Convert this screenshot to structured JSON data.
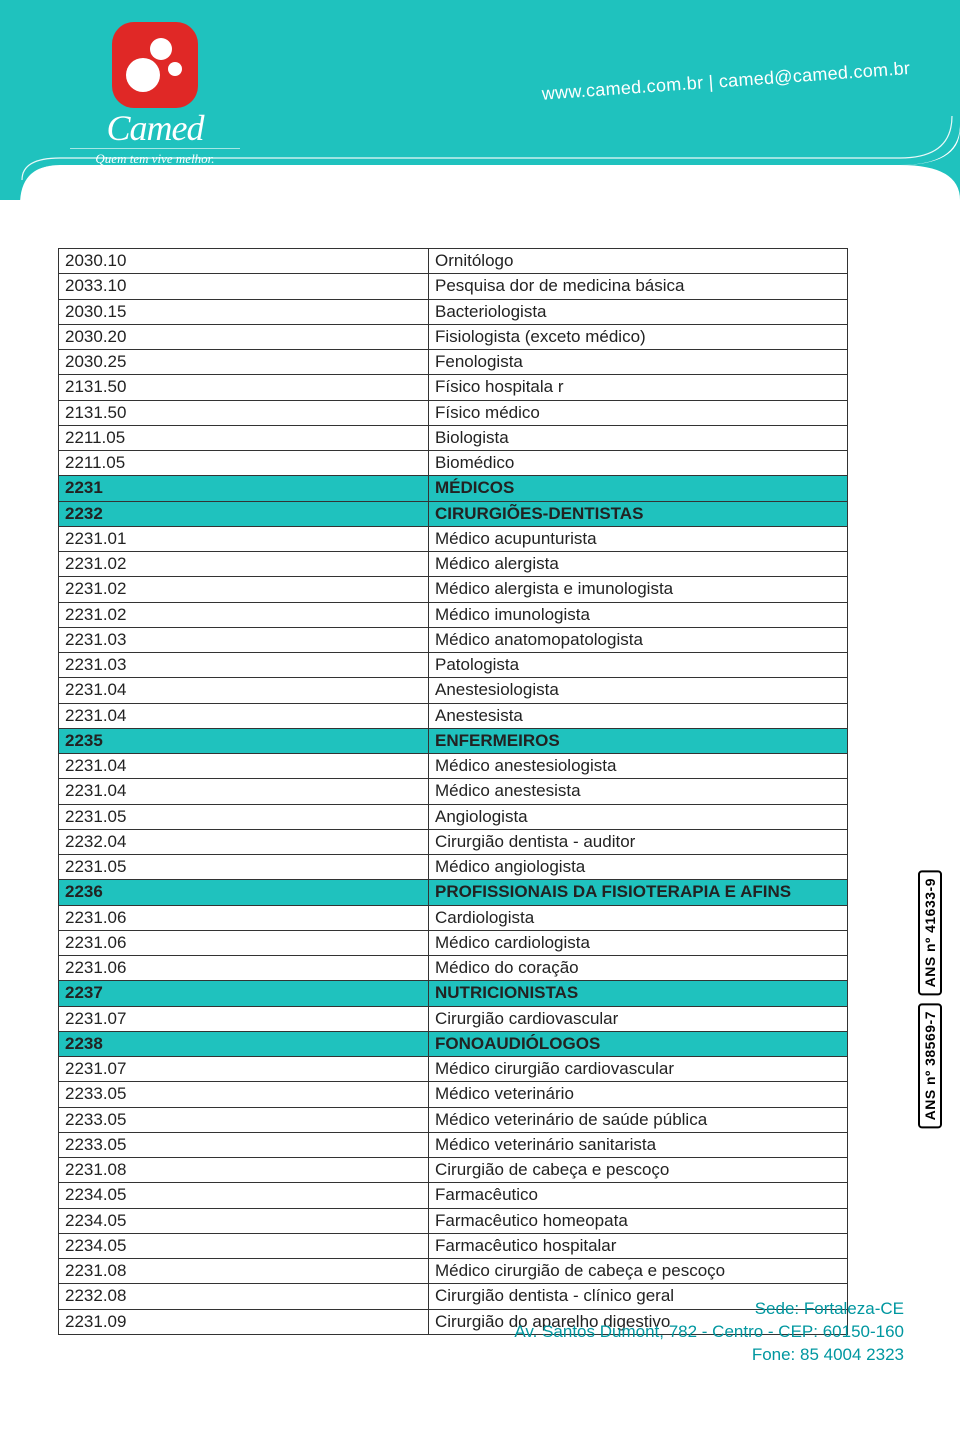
{
  "brand": {
    "name": "Camed",
    "tagline": "Quem tem vive melhor.",
    "url_line": "www.camed.com.br | camed@camed.com.br",
    "logo_bg": "#e02826",
    "header_color": "#1fc2be"
  },
  "ans_badges": [
    "ANS nº 41633-9",
    "ANS nº 38569-7"
  ],
  "footer": {
    "line1": "Sede: Fortaleza-CE",
    "line2": "Av. Santos Dumont, 782 - Centro - CEP: 60150-160",
    "line3": "Fone: 85 4004 2323",
    "color": "#0097a0"
  },
  "table": {
    "highlight_color": "#1fc2be",
    "border_color": "#333333",
    "font_size": 17,
    "code_col_width": 370,
    "rows": [
      {
        "code": "2030.10",
        "desc": "Ornitólogo",
        "hl": false
      },
      {
        "code": "2033.10",
        "desc": "Pesquisa dor de medicina básica",
        "hl": false
      },
      {
        "code": "2030.15",
        "desc": "Bacteriologista",
        "hl": false
      },
      {
        "code": "2030.20",
        "desc": "Fisiologista (exceto médico)",
        "hl": false
      },
      {
        "code": "2030.25",
        "desc": "Fenologista",
        "hl": false
      },
      {
        "code": "2131.50",
        "desc": "Físico hospitala r",
        "hl": false
      },
      {
        "code": "2131.50",
        "desc": "Físico médico",
        "hl": false
      },
      {
        "code": "2211.05",
        "desc": "Biologista",
        "hl": false
      },
      {
        "code": "2211.05",
        "desc": "Biomédico",
        "hl": false
      },
      {
        "code": "2231",
        "desc": "MÉDICOS",
        "hl": true
      },
      {
        "code": "2232",
        "desc": "CIRURGIÕES-DENTISTAS",
        "hl": true
      },
      {
        "code": "2231.01",
        "desc": " Médico acupunturista",
        "hl": false
      },
      {
        "code": "2231.02",
        "desc": " Médico alergista",
        "hl": false
      },
      {
        "code": "2231.02",
        "desc": "Médico alergista e imunologista",
        "hl": false
      },
      {
        "code": "2231.02",
        "desc": "Médico imunologista",
        "hl": false
      },
      {
        "code": "2231.03",
        "desc": "Médico anatomopatologista",
        "hl": false
      },
      {
        "code": "2231.03",
        "desc": " Patologista",
        "hl": false
      },
      {
        "code": "2231.04",
        "desc": "Anestesiologista",
        "hl": false
      },
      {
        "code": "2231.04",
        "desc": " Anestesista",
        "hl": false
      },
      {
        "code": "2235",
        "desc": "ENFERMEIROS",
        "hl": true
      },
      {
        "code": "2231.04",
        "desc": "Médico anestesiologista",
        "hl": false
      },
      {
        "code": "2231.04",
        "desc": " Médico anestesista",
        "hl": false
      },
      {
        "code": "2231.05",
        "desc": "Angiologista",
        "hl": false
      },
      {
        "code": "2232.04",
        "desc": "Cirurgião dentista - auditor",
        "hl": false
      },
      {
        "code": "2231.05",
        "desc": "Médico angiologista",
        "hl": false
      },
      {
        "code": "2236",
        "desc": "PROFISSIONAIS DA FISIOTERAPIA E AFINS",
        "hl": true
      },
      {
        "code": "2231.06",
        "desc": " Cardiologista",
        "hl": false
      },
      {
        "code": "2231.06",
        "desc": " Médico cardiologista",
        "hl": false
      },
      {
        "code": "2231.06",
        "desc": "Médico do coração",
        "hl": false
      },
      {
        "code": "2237",
        "desc": "NUTRICIONISTAS",
        "hl": true
      },
      {
        "code": "2231.07",
        "desc": "Cirurgião cardiovascular",
        "hl": false
      },
      {
        "code": "2238",
        "desc": "FONOAUDIÓLOGOS",
        "hl": true
      },
      {
        "code": "2231.07",
        "desc": "Médico cirurgião cardiovascular",
        "hl": false
      },
      {
        "code": "2233.05",
        "desc": "Médico veterinário",
        "hl": false
      },
      {
        "code": "2233.05",
        "desc": "Médico veterinário de saúde pública",
        "hl": false
      },
      {
        "code": "2233.05",
        "desc": "Médico veterinário sanitarista",
        "hl": false
      },
      {
        "code": "2231.08",
        "desc": "Cirurgião de cabeça e pescoço",
        "hl": false
      },
      {
        "code": "2234.05",
        "desc": "Farmacêutico",
        "hl": false
      },
      {
        "code": "2234.05",
        "desc": "Farmacêutico homeopata",
        "hl": false
      },
      {
        "code": "2234.05",
        "desc": "Farmacêutico hospitalar",
        "hl": false
      },
      {
        "code": "2231.08",
        "desc": "Médico cirurgião de cabeça e pescoço",
        "hl": false
      },
      {
        "code": "2232.08",
        "desc": "Cirurgião dentista - clínico geral",
        "hl": false
      },
      {
        "code": "2231.09",
        "desc": "Cirurgião do aparelho digestivo",
        "hl": false
      }
    ]
  }
}
